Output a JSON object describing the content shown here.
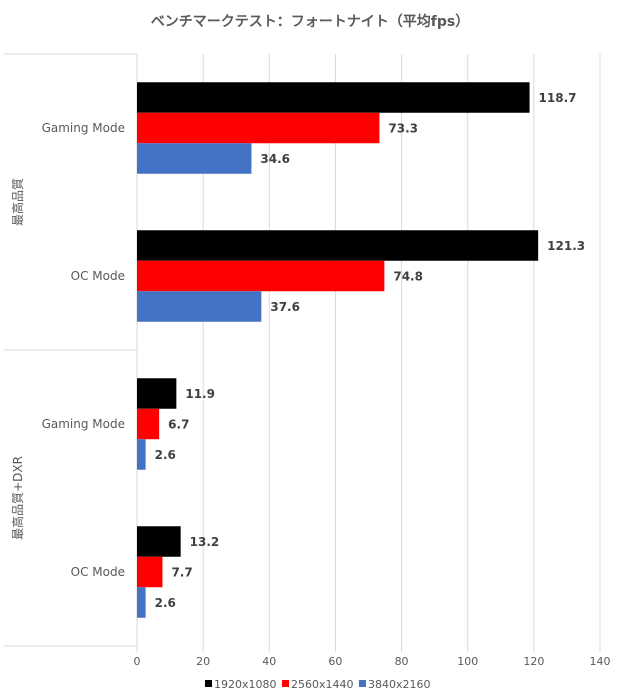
{
  "chart_data": {
    "type": "bar",
    "orientation": "horizontal",
    "title": "ベンチマークテスト：フォートナイト（平均fps）",
    "xlabel": "",
    "ylabel": "",
    "xlim": [
      0,
      140
    ],
    "xticks": [
      0,
      20,
      40,
      60,
      80,
      100,
      120,
      140
    ],
    "tick_labels": [
      "0",
      "20",
      "40",
      "60",
      "80",
      "100",
      "120",
      "140"
    ],
    "grid": true,
    "legend_position": "bottom",
    "groups": [
      {
        "label": "最高品質",
        "categories": [
          "Gaming Mode",
          "OC Mode"
        ]
      },
      {
        "label": "最高品質+DXR",
        "categories": [
          "Gaming Mode",
          "OC Mode"
        ]
      }
    ],
    "categories": [
      "最高品質 / Gaming Mode",
      "最高品質 / OC Mode",
      "最高品質+DXR / Gaming Mode",
      "最高品質+DXR / OC Mode"
    ],
    "category_labels": [
      "Gaming Mode",
      "OC Mode",
      "Gaming Mode",
      "OC Mode"
    ],
    "series": [
      {
        "name": "1920x1080",
        "color": "#000000",
        "values": [
          118.7,
          121.3,
          11.9,
          13.2
        ],
        "labels": [
          "118.7",
          "121.3",
          "11.9",
          "13.2"
        ]
      },
      {
        "name": "2560x1440",
        "color": "#ff0000",
        "values": [
          73.3,
          74.8,
          6.7,
          7.7
        ],
        "labels": [
          "73.3",
          "74.8",
          "6.7",
          "7.7"
        ]
      },
      {
        "name": "3840x2160",
        "color": "#4472c4",
        "values": [
          34.6,
          37.6,
          2.6,
          2.6
        ],
        "labels": [
          "34.6",
          "37.6",
          "2.6",
          "2.6"
        ]
      }
    ]
  }
}
